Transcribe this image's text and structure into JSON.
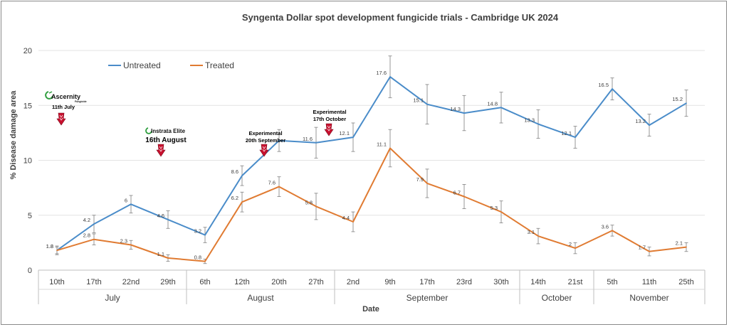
{
  "chart_data": {
    "type": "line",
    "title": "Syngenta Dollar spot development fungicide trials - Cambridge UK 2024",
    "xlabel": "Date",
    "ylabel": "% Disease damage area",
    "ylim": [
      0,
      20
    ],
    "yticks": [
      "0",
      "5",
      "10",
      "15",
      "20"
    ],
    "grid": true,
    "legend_position": "top-left",
    "categories": [
      "10th",
      "17th",
      "22nd",
      "29th",
      "6th",
      "12th",
      "20th",
      "27th",
      "2nd",
      "9th",
      "17th",
      "23rd",
      "30th",
      "14th",
      "21st",
      "5th",
      "11th",
      "25th"
    ],
    "month_groups": [
      {
        "label": "July",
        "count": 4
      },
      {
        "label": "August",
        "count": 4
      },
      {
        "label": "September",
        "count": 5
      },
      {
        "label": "October",
        "count": 2
      },
      {
        "label": "November",
        "count": 3
      }
    ],
    "series": [
      {
        "name": "Untreated",
        "color": "#4a8cc9",
        "values": [
          1.8,
          4.2,
          6,
          4.6,
          3.2,
          8.6,
          11.8,
          11.6,
          12.1,
          17.6,
          15.1,
          14.3,
          14.8,
          13.3,
          12.1,
          16.5,
          13.2,
          15.2
        ],
        "labels": [
          "1.8",
          "4.2",
          "6",
          "4.6",
          "3.2",
          "8.6",
          "",
          "11.6",
          "12.1",
          "17.6",
          "15.1",
          "14.3",
          "14.8",
          "13.3",
          "12.1",
          "16.5",
          "13.2",
          "15.2"
        ],
        "errors": [
          0.4,
          0.8,
          0.8,
          0.8,
          0.7,
          0.9,
          1.0,
          1.4,
          1.3,
          1.9,
          1.8,
          1.6,
          1.4,
          1.3,
          1.0,
          1.0,
          1.0,
          1.2
        ]
      },
      {
        "name": "Treated",
        "color": "#e07b32",
        "values": [
          1.8,
          2.8,
          2.3,
          1.1,
          0.8,
          6.2,
          7.6,
          5.8,
          4.4,
          11.1,
          7.9,
          6.7,
          5.3,
          3.1,
          2,
          3.6,
          1.7,
          2.1
        ],
        "labels": [
          "1.8",
          "2.8",
          "2.3",
          "1.1",
          "0.8",
          "6.2",
          "7.6",
          "5.8",
          "4.4",
          "11.1",
          "7.9",
          "6.7",
          "5.3",
          "3.1",
          "2",
          "3.6",
          "1.7",
          "2.1"
        ],
        "errors": [
          0.3,
          0.5,
          0.4,
          0.3,
          0.2,
          0.9,
          0.9,
          1.2,
          0.9,
          1.7,
          1.3,
          1.1,
          1.0,
          0.7,
          0.5,
          0.5,
          0.4,
          0.4
        ]
      }
    ],
    "annotations": [
      {
        "brand": "Ascernity",
        "brand_sub": "Fungicide",
        "date": "11th July",
        "color": "#c8102e"
      },
      {
        "brand": "Instrata Elite",
        "date": "16th August",
        "color": "#c8102e"
      },
      {
        "line1": "Experimental",
        "line2": "20th September",
        "color": "#c8102e"
      },
      {
        "line1": "Experimental",
        "line2": "17th October",
        "color": "#c8102e"
      }
    ]
  }
}
